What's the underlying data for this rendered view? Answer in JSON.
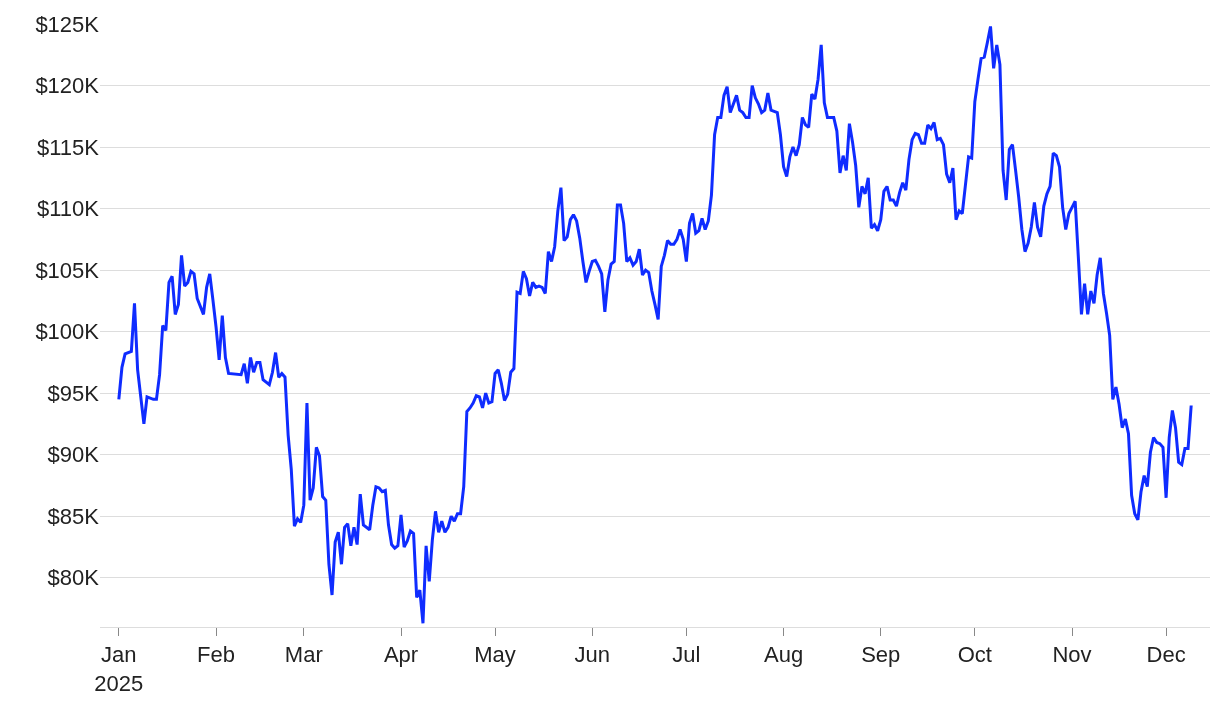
{
  "chart_data": {
    "type": "line",
    "xlim": [
      "2024-12-26",
      "2025-12-15"
    ],
    "ylim": [
      76,
      125
    ],
    "xticks": [
      {
        "value": "2025-01-01",
        "label": "Jan\n2025"
      },
      {
        "value": "2025-02-01",
        "label": "Feb"
      },
      {
        "value": "2025-03-01",
        "label": "Mar"
      },
      {
        "value": "2025-04-01",
        "label": "Apr"
      },
      {
        "value": "2025-05-01",
        "label": "May"
      },
      {
        "value": "2025-06-01",
        "label": "Jun"
      },
      {
        "value": "2025-07-01",
        "label": "Jul"
      },
      {
        "value": "2025-08-01",
        "label": "Aug"
      },
      {
        "value": "2025-09-01",
        "label": "Sep"
      },
      {
        "value": "2025-10-01",
        "label": "Oct"
      },
      {
        "value": "2025-11-01",
        "label": "Nov"
      },
      {
        "value": "2025-12-01",
        "label": "Dec"
      }
    ],
    "yticks": [
      {
        "value": 80,
        "label": "$80K"
      },
      {
        "value": 85,
        "label": "$85K"
      },
      {
        "value": 90,
        "label": "$90K"
      },
      {
        "value": 95,
        "label": "$95K"
      },
      {
        "value": 100,
        "label": "$100K"
      },
      {
        "value": 105,
        "label": "$105K"
      },
      {
        "value": 110,
        "label": "$110K"
      },
      {
        "value": 115,
        "label": "$115K"
      },
      {
        "value": 120,
        "label": "$120K"
      },
      {
        "value": 125,
        "label": "$125K"
      }
    ],
    "grid": "y",
    "marker": "none",
    "line_style": "solid",
    "series": [
      {
        "color": "#0f2cff",
        "x": [
          "2025-01-01",
          "2025-01-02",
          "2025-01-03",
          "2025-01-05",
          "2025-01-06",
          "2025-01-07",
          "2025-01-09",
          "2025-01-10",
          "2025-01-12",
          "2025-01-13",
          "2025-01-14",
          "2025-01-15",
          "2025-01-16",
          "2025-01-17",
          "2025-01-18",
          "2025-01-19",
          "2025-01-20",
          "2025-01-21",
          "2025-01-22",
          "2025-01-23",
          "2025-01-24",
          "2025-01-25",
          "2025-01-26",
          "2025-01-28",
          "2025-01-29",
          "2025-01-30",
          "2025-01-31",
          "2025-02-01",
          "2025-02-02",
          "2025-02-03",
          "2025-02-04",
          "2025-02-05",
          "2025-02-09",
          "2025-02-10",
          "2025-02-11",
          "2025-02-12",
          "2025-02-13",
          "2025-02-14",
          "2025-02-15",
          "2025-02-16",
          "2025-02-18",
          "2025-02-19",
          "2025-02-20",
          "2025-02-21",
          "2025-02-22",
          "2025-02-23",
          "2025-02-24",
          "2025-02-25",
          "2025-02-26",
          "2025-02-27",
          "2025-02-28",
          "2025-03-01",
          "2025-03-02",
          "2025-03-03",
          "2025-03-04",
          "2025-03-05",
          "2025-03-06",
          "2025-03-07",
          "2025-03-08",
          "2025-03-09",
          "2025-03-10",
          "2025-03-11",
          "2025-03-12",
          "2025-03-13",
          "2025-03-14",
          "2025-03-15",
          "2025-03-16",
          "2025-03-17",
          "2025-03-18",
          "2025-03-19",
          "2025-03-20",
          "2025-03-22",
          "2025-03-23",
          "2025-03-24",
          "2025-03-25",
          "2025-03-26",
          "2025-03-27",
          "2025-03-28",
          "2025-03-29",
          "2025-03-30",
          "2025-03-31",
          "2025-04-01",
          "2025-04-02",
          "2025-04-03",
          "2025-04-04",
          "2025-04-05",
          "2025-04-06",
          "2025-04-07",
          "2025-04-08",
          "2025-04-09",
          "2025-04-10",
          "2025-04-11",
          "2025-04-12",
          "2025-04-13",
          "2025-04-14",
          "2025-04-15",
          "2025-04-16",
          "2025-04-17",
          "2025-04-18",
          "2025-04-19",
          "2025-04-20",
          "2025-04-21",
          "2025-04-22",
          "2025-04-23",
          "2025-04-24",
          "2025-04-25",
          "2025-04-26",
          "2025-04-27",
          "2025-04-28",
          "2025-04-29",
          "2025-04-30",
          "2025-05-01",
          "2025-05-02",
          "2025-05-03",
          "2025-05-04",
          "2025-05-05",
          "2025-05-06",
          "2025-05-07",
          "2025-05-08",
          "2025-05-09",
          "2025-05-10",
          "2025-05-11",
          "2025-05-12",
          "2025-05-13",
          "2025-05-14",
          "2025-05-15",
          "2025-05-16",
          "2025-05-17",
          "2025-05-18",
          "2025-05-19",
          "2025-05-20",
          "2025-05-21",
          "2025-05-22",
          "2025-05-23",
          "2025-05-24",
          "2025-05-25",
          "2025-05-26",
          "2025-05-27",
          "2025-05-28",
          "2025-05-29",
          "2025-05-30",
          "2025-05-31",
          "2025-06-01",
          "2025-06-02",
          "2025-06-03",
          "2025-06-04",
          "2025-06-05",
          "2025-06-06",
          "2025-06-07",
          "2025-06-08",
          "2025-06-09",
          "2025-06-10",
          "2025-06-11",
          "2025-06-12",
          "2025-06-13",
          "2025-06-14",
          "2025-06-15",
          "2025-06-16",
          "2025-06-17",
          "2025-06-18",
          "2025-06-19",
          "2025-06-20",
          "2025-06-21",
          "2025-06-22",
          "2025-06-23",
          "2025-06-24",
          "2025-06-25",
          "2025-06-26",
          "2025-06-27",
          "2025-06-28",
          "2025-06-29",
          "2025-06-30",
          "2025-07-01",
          "2025-07-02",
          "2025-07-03",
          "2025-07-04",
          "2025-07-05",
          "2025-07-06",
          "2025-07-07",
          "2025-07-08",
          "2025-07-09",
          "2025-07-10",
          "2025-07-11",
          "2025-07-12",
          "2025-07-13",
          "2025-07-14",
          "2025-07-15",
          "2025-07-16",
          "2025-07-17",
          "2025-07-18",
          "2025-07-19",
          "2025-07-20",
          "2025-07-21",
          "2025-07-22",
          "2025-07-23",
          "2025-07-24",
          "2025-07-25",
          "2025-07-26",
          "2025-07-27",
          "2025-07-28",
          "2025-07-29",
          "2025-07-30",
          "2025-07-31",
          "2025-08-01",
          "2025-08-02",
          "2025-08-03",
          "2025-08-04",
          "2025-08-05",
          "2025-08-06",
          "2025-08-07",
          "2025-08-08",
          "2025-08-09",
          "2025-08-10",
          "2025-08-11",
          "2025-08-12",
          "2025-08-13",
          "2025-08-14",
          "2025-08-15",
          "2025-08-16",
          "2025-08-17",
          "2025-08-18",
          "2025-08-19",
          "2025-08-20",
          "2025-08-21",
          "2025-08-22",
          "2025-08-23",
          "2025-08-24",
          "2025-08-25",
          "2025-08-26",
          "2025-08-27",
          "2025-08-28",
          "2025-08-29",
          "2025-08-30",
          "2025-08-31",
          "2025-09-01",
          "2025-09-02",
          "2025-09-03",
          "2025-09-04",
          "2025-09-05",
          "2025-09-06",
          "2025-09-07",
          "2025-09-08",
          "2025-09-09",
          "2025-09-10",
          "2025-09-11",
          "2025-09-12",
          "2025-09-13",
          "2025-09-14",
          "2025-09-15",
          "2025-09-16",
          "2025-09-17",
          "2025-09-18",
          "2025-09-19",
          "2025-09-20",
          "2025-09-21",
          "2025-09-22",
          "2025-09-23",
          "2025-09-24",
          "2025-09-25",
          "2025-09-26",
          "2025-09-27",
          "2025-09-28",
          "2025-09-29",
          "2025-09-30",
          "2025-10-01",
          "2025-10-02",
          "2025-10-03",
          "2025-10-04",
          "2025-10-05",
          "2025-10-06",
          "2025-10-07",
          "2025-10-08",
          "2025-10-09",
          "2025-10-10",
          "2025-10-11",
          "2025-10-12",
          "2025-10-13",
          "2025-10-14",
          "2025-10-15",
          "2025-10-16",
          "2025-10-17",
          "2025-10-18",
          "2025-10-19",
          "2025-10-20",
          "2025-10-21",
          "2025-10-22",
          "2025-10-23",
          "2025-10-24",
          "2025-10-25",
          "2025-10-26",
          "2025-10-27",
          "2025-10-28",
          "2025-10-29",
          "2025-10-30",
          "2025-10-31",
          "2025-11-01",
          "2025-11-02",
          "2025-11-03",
          "2025-11-04",
          "2025-11-05",
          "2025-11-06",
          "2025-11-07",
          "2025-11-08",
          "2025-11-09",
          "2025-11-10",
          "2025-11-11",
          "2025-11-12",
          "2025-11-13",
          "2025-11-14",
          "2025-11-15",
          "2025-11-16",
          "2025-11-17",
          "2025-11-18",
          "2025-11-19",
          "2025-11-20",
          "2025-11-21",
          "2025-11-22",
          "2025-11-23",
          "2025-11-24",
          "2025-11-25",
          "2025-11-26",
          "2025-11-27",
          "2025-11-28",
          "2025-11-29",
          "2025-11-30",
          "2025-12-01",
          "2025-12-02",
          "2025-12-03",
          "2025-12-04",
          "2025-12-05",
          "2025-12-06",
          "2025-12-07",
          "2025-12-08",
          "2025-12-09"
        ],
        "values": [
          94.5,
          97.1,
          98.2,
          98.4,
          102.3,
          96.9,
          92.5,
          94.7,
          94.5,
          94.5,
          96.5,
          100.5,
          100.1,
          104.0,
          104.5,
          101.4,
          102.2,
          106.2,
          103.7,
          104.0,
          104.9,
          104.7,
          102.7,
          101.4,
          103.6,
          104.7,
          102.6,
          100.4,
          97.7,
          101.3,
          97.9,
          96.6,
          96.5,
          97.4,
          95.8,
          97.9,
          96.7,
          97.5,
          97.5,
          96.1,
          95.7,
          96.7,
          98.3,
          96.3,
          96.6,
          96.3,
          91.6,
          88.8,
          84.2,
          84.8,
          84.5,
          85.9,
          94.2,
          86.3,
          87.3,
          90.6,
          89.9,
          86.6,
          86.3,
          81.1,
          78.6,
          82.9,
          83.7,
          81.1,
          84.1,
          84.4,
          82.6,
          84.1,
          82.7,
          86.8,
          84.3,
          83.9,
          85.9,
          87.4,
          87.3,
          87.0,
          87.1,
          84.3,
          82.7,
          82.4,
          82.6,
          85.1,
          82.5,
          83.0,
          83.8,
          83.6,
          78.4,
          79.0,
          76.3,
          82.6,
          79.7,
          83.1,
          85.4,
          83.7,
          84.6,
          83.7,
          84.1,
          85.0,
          84.6,
          85.2,
          85.2,
          87.4,
          93.5,
          93.8,
          94.2,
          94.8,
          94.7,
          93.8,
          95.0,
          94.2,
          94.3,
          96.6,
          96.9,
          95.8,
          94.4,
          94.9,
          96.7,
          97.0,
          103.2,
          103.1,
          104.9,
          104.3,
          102.9,
          104.0,
          103.6,
          103.7,
          103.6,
          103.1,
          106.5,
          105.7,
          106.9,
          109.8,
          111.7,
          107.4,
          107.7,
          109.1,
          109.5,
          109.0,
          107.6,
          105.7,
          104.0,
          104.9,
          105.7,
          105.8,
          105.3,
          104.7,
          101.6,
          104.2,
          105.5,
          105.7,
          110.3,
          110.3,
          108.8,
          105.7,
          106.0,
          105.4,
          105.7,
          106.7,
          104.6,
          105.0,
          104.8,
          103.3,
          102.2,
          101.0,
          105.3,
          106.2,
          107.4,
          107.1,
          107.1,
          107.5,
          108.3,
          107.5,
          105.7,
          108.8,
          109.6,
          108.0,
          108.2,
          109.2,
          108.3,
          109.0,
          111.1,
          116.0,
          117.4,
          117.4,
          119.2,
          119.9,
          117.8,
          118.5,
          119.2,
          118.0,
          117.8,
          117.4,
          117.4,
          120.0,
          119.0,
          118.5,
          117.8,
          118.0,
          119.4,
          118.0,
          117.9,
          117.8,
          116.0,
          113.4,
          112.6,
          114.2,
          115.0,
          114.3,
          115.2,
          117.4,
          116.8,
          116.6,
          119.3,
          118.9,
          120.5,
          123.3,
          118.6,
          117.4,
          117.4,
          117.4,
          116.3,
          112.9,
          114.3,
          113.1,
          116.9,
          115.4,
          113.5,
          110.1,
          111.8,
          111.2,
          112.5,
          108.4,
          108.7,
          108.2,
          109.1,
          111.4,
          111.8,
          110.7,
          110.7,
          110.2,
          111.3,
          112.1,
          111.5,
          114.0,
          115.6,
          116.1,
          116.0,
          115.3,
          115.3,
          116.8,
          116.5,
          117.0,
          115.6,
          115.7,
          115.2,
          112.8,
          112.1,
          113.3,
          109.1,
          109.8,
          109.6,
          111.9,
          114.2,
          114.1,
          118.7,
          120.5,
          122.2,
          122.3,
          123.5,
          124.8,
          121.4,
          123.3,
          121.7,
          113.1,
          110.7,
          114.8,
          115.2,
          113.1,
          110.9,
          108.3,
          106.5,
          107.2,
          108.5,
          110.5,
          108.5,
          107.7,
          110.2,
          111.2,
          111.8,
          114.5,
          114.3,
          113.4,
          110.1,
          108.3,
          109.6,
          110.1,
          110.6,
          106.1,
          101.4,
          103.9,
          101.4,
          103.3,
          102.3,
          104.6,
          106.0,
          103.1,
          101.5,
          99.7,
          94.5,
          95.5,
          94.1,
          92.2,
          92.9,
          91.7,
          86.7,
          85.2,
          84.7,
          87.0,
          88.3,
          87.4,
          90.2,
          91.4,
          91.0,
          90.9,
          90.6,
          86.5,
          91.4,
          93.6,
          92.2,
          89.4,
          89.2,
          90.5,
          90.5,
          94.0
        ]
      }
    ]
  }
}
